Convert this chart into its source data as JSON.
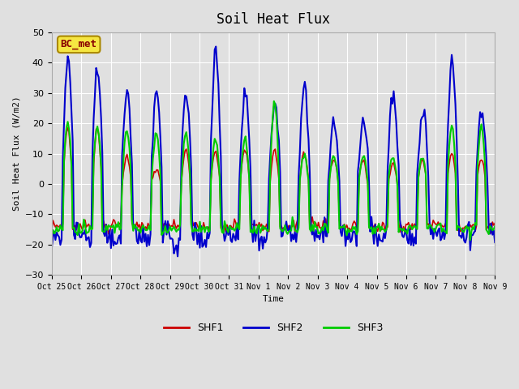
{
  "title": "Soil Heat Flux",
  "ylabel": "Soil Heat Flux (W/m2)",
  "xlabel": "Time",
  "ylim": [
    -30,
    50
  ],
  "yticks": [
    -30,
    -20,
    -10,
    0,
    10,
    20,
    30,
    40,
    50
  ],
  "background_color": "#e0e0e0",
  "plot_bg_color": "#e0e0e0",
  "line_colors": {
    "SHF1": "#cc0000",
    "SHF2": "#0000cc",
    "SHF3": "#00cc00"
  },
  "line_widths": {
    "SHF1": 1.2,
    "SHF2": 1.5,
    "SHF3": 1.5
  },
  "annotation_text": "BC_met",
  "annotation_color": "#880000",
  "annotation_bg": "#f5e642",
  "xtick_labels": [
    "Oct 25",
    "Oct 26",
    "Oct 27",
    "Oct 28",
    "Oct 29",
    "Oct 30",
    "Oct 31",
    "Nov 1",
    "Nov 2",
    "Nov 3",
    "Nov 4",
    "Nov 5",
    "Nov 6",
    "Nov 7",
    "Nov 8",
    "Nov 9"
  ],
  "n_days": 15
}
